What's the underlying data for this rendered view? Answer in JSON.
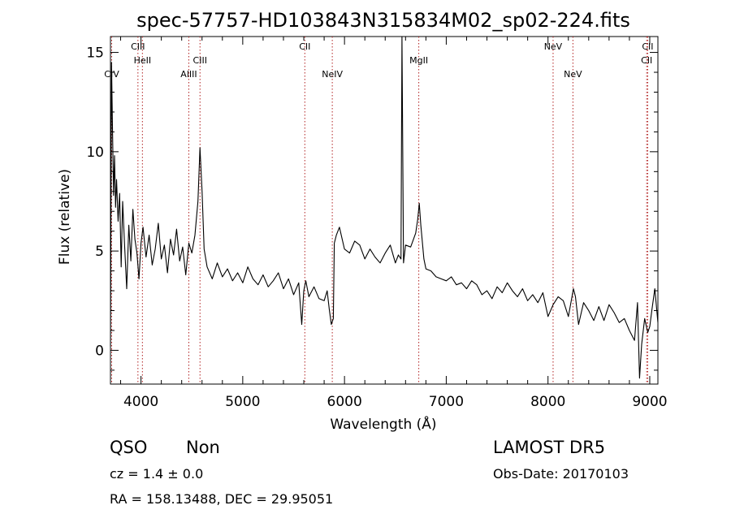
{
  "chart_data": {
    "type": "line",
    "title": "spec-57757-HD103843N315834M02_sp02-224.fits",
    "xlabel": "Wavelength (Å)",
    "ylabel": "Flux (relative)",
    "xlim": [
      3700,
      9080
    ],
    "ylim": [
      -1.7,
      15.8
    ],
    "x_ticks": [
      4000,
      5000,
      6000,
      7000,
      8000,
      9000
    ],
    "x_tick_labels": [
      "4000",
      "5000",
      "6000",
      "7000",
      "8000",
      "9000"
    ],
    "y_ticks": [
      0,
      5,
      10,
      15
    ],
    "y_tick_labels": [
      "0",
      "5",
      "10",
      "15"
    ],
    "grid": false,
    "line_color": "#000000",
    "marker_color": "#b22222",
    "series": [
      {
        "name": "",
        "x": [
          3700,
          3710,
          3720,
          3730,
          3740,
          3750,
          3760,
          3775,
          3790,
          3805,
          3820,
          3840,
          3860,
          3880,
          3900,
          3920,
          3940,
          3960,
          3980,
          4000,
          4020,
          4050,
          4080,
          4110,
          4140,
          4170,
          4200,
          4230,
          4260,
          4290,
          4320,
          4350,
          4380,
          4410,
          4440,
          4470,
          4500,
          4530,
          4560,
          4580,
          4600,
          4620,
          4650,
          4700,
          4750,
          4800,
          4850,
          4900,
          4950,
          5000,
          5050,
          5100,
          5150,
          5200,
          5250,
          5300,
          5350,
          5400,
          5450,
          5500,
          5550,
          5580,
          5600,
          5620,
          5650,
          5700,
          5750,
          5800,
          5830,
          5850,
          5870,
          5890,
          5900,
          5920,
          5950,
          6000,
          6050,
          6100,
          6150,
          6200,
          6250,
          6300,
          6350,
          6400,
          6450,
          6500,
          6530,
          6555,
          6565,
          6580,
          6600,
          6650,
          6700,
          6720,
          6735,
          6750,
          6780,
          6800,
          6850,
          6900,
          6950,
          7000,
          7050,
          7100,
          7150,
          7200,
          7250,
          7300,
          7350,
          7400,
          7450,
          7500,
          7550,
          7600,
          7650,
          7700,
          7750,
          7800,
          7850,
          7900,
          7950,
          8000,
          8050,
          8100,
          8150,
          8200,
          8250,
          8270,
          8300,
          8350,
          8400,
          8450,
          8500,
          8550,
          8600,
          8650,
          8700,
          8750,
          8800,
          8850,
          8880,
          8900,
          8920,
          8950,
          8980,
          9000,
          9020,
          9050,
          9080
        ],
        "y": [
          0.2,
          14.5,
          11.2,
          7.8,
          9.8,
          7.2,
          8.6,
          6.5,
          7.9,
          4.2,
          7.5,
          5.2,
          3.1,
          6.3,
          4.5,
          7.1,
          5.6,
          4.9,
          3.6,
          5.4,
          6.2,
          4.7,
          5.8,
          4.3,
          5.1,
          6.4,
          4.6,
          5.3,
          3.9,
          5.6,
          4.8,
          6.1,
          4.5,
          5.2,
          3.8,
          5.4,
          4.9,
          5.8,
          7.5,
          10.2,
          8.0,
          5.1,
          4.2,
          3.6,
          4.4,
          3.7,
          4.1,
          3.5,
          3.9,
          3.4,
          4.2,
          3.6,
          3.3,
          3.8,
          3.2,
          3.5,
          3.9,
          3.1,
          3.6,
          2.8,
          3.4,
          1.3,
          3.0,
          3.5,
          2.7,
          3.2,
          2.6,
          2.5,
          3.0,
          2.1,
          1.3,
          1.6,
          5.4,
          5.8,
          6.2,
          5.1,
          4.9,
          5.5,
          5.3,
          4.6,
          5.1,
          4.7,
          4.4,
          4.9,
          5.3,
          4.4,
          4.8,
          4.6,
          15.8,
          4.4,
          5.3,
          5.2,
          5.9,
          6.6,
          7.4,
          6.3,
          4.6,
          4.1,
          4.0,
          3.7,
          3.6,
          3.5,
          3.7,
          3.3,
          3.4,
          3.1,
          3.5,
          3.3,
          2.8,
          3.0,
          2.6,
          3.2,
          2.9,
          3.4,
          3.0,
          2.7,
          3.1,
          2.5,
          2.8,
          2.4,
          2.9,
          1.7,
          2.3,
          2.7,
          2.5,
          1.7,
          3.1,
          2.7,
          1.3,
          2.4,
          2.0,
          1.5,
          2.2,
          1.5,
          2.3,
          1.9,
          1.4,
          1.6,
          1.0,
          0.5,
          2.4,
          -1.4,
          0.3,
          1.6,
          0.9,
          1.2,
          2.0,
          3.1,
          1.4
        ]
      }
    ],
    "line_markers": [
      {
        "label": "CIV",
        "x": 3712,
        "row": 2
      },
      {
        "label": "CIII",
        "x": 3970,
        "row": 0
      },
      {
        "label": "HeII",
        "x": 4014,
        "row": 1
      },
      {
        "label": "AlIII",
        "x": 4470,
        "row": 2
      },
      {
        "label": "CIII",
        "x": 4580,
        "row": 1
      },
      {
        "label": "CII",
        "x": 5610,
        "row": 0
      },
      {
        "label": "NeIV",
        "x": 5880,
        "row": 2
      },
      {
        "label": "MgII",
        "x": 6730,
        "row": 1
      },
      {
        "label": "NeV",
        "x": 8050,
        "row": 0
      },
      {
        "label": "NeV",
        "x": 8245,
        "row": 2
      },
      {
        "label": "CII",
        "x": 8980,
        "row": 0
      },
      {
        "label": "CII",
        "x": 8970,
        "row": 1
      }
    ]
  },
  "info": {
    "class": "QSO",
    "subclass": "Non",
    "cz": "cz = 1.4 ± 0.0",
    "radec": "RA = 158.13488, DEC =  29.95051",
    "survey": "LAMOST DR5",
    "obs_date": "Obs-Date: 20170103"
  }
}
